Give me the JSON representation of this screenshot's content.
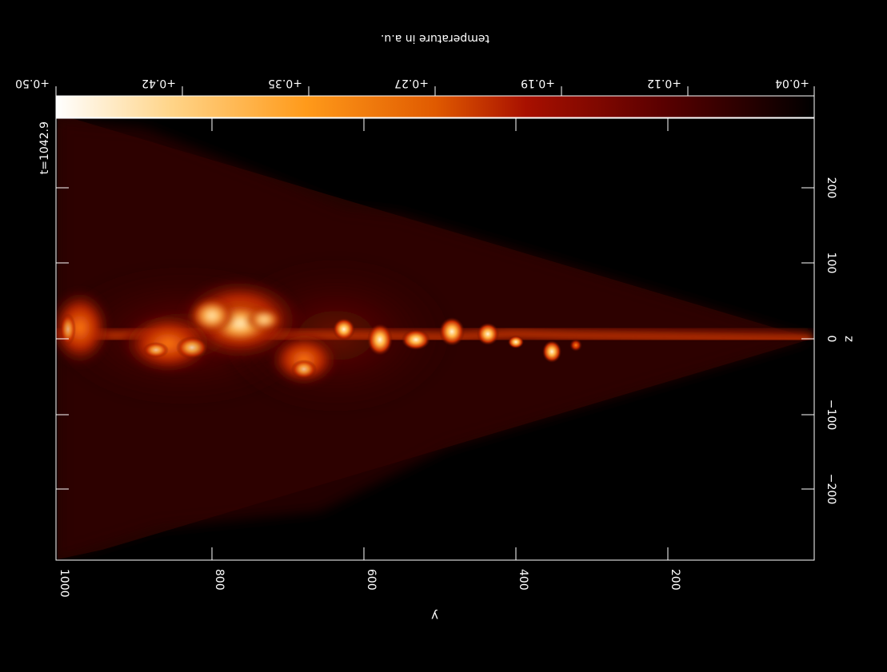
{
  "time_label": "t=1042.9",
  "colorbar": {
    "label": "temperature in a.u.",
    "ticks": [
      "+0.50",
      "+0.42",
      "+0.35",
      "+0.27",
      "+0.19",
      "+0.12",
      "+0.04"
    ],
    "colors": [
      "#ffffff",
      "#ffd58a",
      "#ff9a1a",
      "#e05a00",
      "#a81000",
      "#5a0000",
      "#000000"
    ]
  },
  "axes": {
    "y_label": "y",
    "z_label": "z",
    "y_ticks": [
      "1000",
      "800",
      "600",
      "400",
      "200"
    ],
    "z_ticks": [
      "200",
      "100",
      "0",
      "−100",
      "−200"
    ]
  },
  "image": {
    "description_colors": {
      "background": "#000000",
      "cone": "#2a0500",
      "hot": "#ffe9b0"
    }
  }
}
